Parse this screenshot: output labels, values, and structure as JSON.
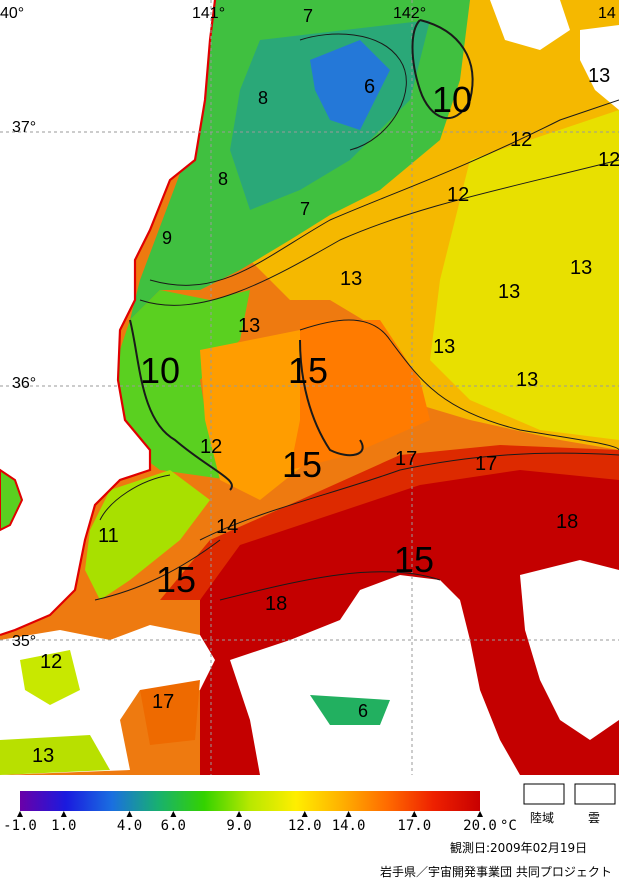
{
  "map": {
    "longitude_labels": [
      "40°",
      "141°",
      "142°",
      "14"
    ],
    "latitude_labels": [
      "37°",
      "36°",
      "35°"
    ],
    "contour_labels": [
      {
        "text": "7"
      },
      {
        "text": "6"
      },
      {
        "text": "8"
      },
      {
        "text": "10"
      },
      {
        "text": "8"
      },
      {
        "text": "12"
      },
      {
        "text": "12"
      },
      {
        "text": "13"
      },
      {
        "text": "12"
      },
      {
        "text": "7"
      },
      {
        "text": "9"
      },
      {
        "text": "13"
      },
      {
        "text": "13"
      },
      {
        "text": "13"
      },
      {
        "text": "10"
      },
      {
        "text": "15"
      },
      {
        "text": "13"
      },
      {
        "text": "13"
      },
      {
        "text": "13"
      },
      {
        "text": "12"
      },
      {
        "text": "15"
      },
      {
        "text": "17"
      },
      {
        "text": "17"
      },
      {
        "text": "14"
      },
      {
        "text": "18"
      },
      {
        "text": "11"
      },
      {
        "text": "15"
      },
      {
        "text": "15"
      },
      {
        "text": "18"
      },
      {
        "text": "12"
      },
      {
        "text": "17"
      },
      {
        "text": "6"
      },
      {
        "text": "13"
      }
    ],
    "colors": {
      "land": "#ffffff",
      "cloud": "#ffffff",
      "coastline": "#e00000",
      "grid": "#9a9a9a",
      "contour": "#1a1a1a"
    }
  },
  "legend": {
    "ticks": [
      "-1.0",
      "1.0",
      "4.0",
      "6.0",
      "9.0",
      "12.0",
      "14.0",
      "17.0",
      "20.0"
    ],
    "unit": "°C",
    "land_label": "陸域",
    "cloud_label": "雲",
    "colors": [
      "#6a00a8",
      "#1a1adf",
      "#1a6fe0",
      "#18b070",
      "#33d200",
      "#b8e800",
      "#ffee00",
      "#ffb000",
      "#ff6a00",
      "#ee2000",
      "#c80000"
    ]
  },
  "footer": {
    "observation_date": "観測日:2009年02月19日",
    "credit": "岩手県／宇宙開発事業団 共同プロジェクト"
  }
}
